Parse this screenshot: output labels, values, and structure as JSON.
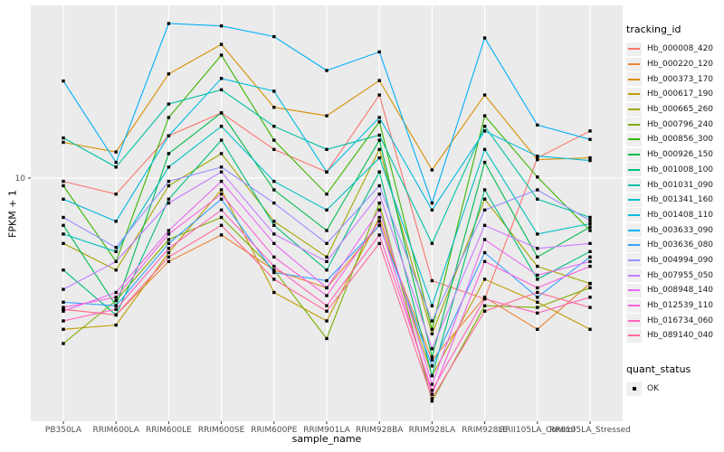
{
  "y_axis": {
    "title": "FPKM + 1"
  },
  "x_axis": {
    "title": "sample_name"
  },
  "legend": {
    "tracking_title": "tracking_id",
    "quant_title": "quant_status",
    "quant_items": [
      {
        "label": "OK",
        "shape": "filled-square"
      }
    ]
  },
  "chart_data": {
    "type": "line",
    "title": "",
    "xlabel": "sample_name",
    "ylabel": "FPKM + 1",
    "y_scale": "log10",
    "y_ticks": [
      "10"
    ],
    "grid": "on",
    "legend_position": "right",
    "panel_bg": "#EBEBEB",
    "grid_color": "#FFFFFF",
    "point_color": "#000000",
    "point_shape": "filled-square",
    "tick_text_color": "#4D4D4D",
    "categories": [
      "PB350LA",
      "RRIM600LA",
      "RRIM600LE",
      "RRIM600SE",
      "RRIM600PE",
      "RRIM901LA",
      "RRIM928BA",
      "RRIM928LA",
      "RRIM928LE",
      "RRII105LA_Control",
      "RRII105LA_Stressed"
    ],
    "series": [
      {
        "name": "Hb_000008_420",
        "color": "#F8766D",
        "values": [
          9.7,
          8.6,
          14.9,
          18.5,
          13.1,
          10.6,
          21.9,
          3.8,
          3.2,
          12.1,
          15.6
        ]
      },
      {
        "name": "Hb_000220_120",
        "color": "#EA8331",
        "values": [
          2.9,
          2.75,
          4.55,
          5.85,
          4.2,
          3.55,
          6.4,
          1.8,
          3.25,
          2.4,
          3.7
        ]
      },
      {
        "name": "Hb_000373_170",
        "color": "#D89000",
        "values": [
          14.0,
          12.8,
          26.7,
          35.3,
          19.5,
          18.0,
          25.1,
          10.8,
          21.9,
          11.9,
          12.1
        ]
      },
      {
        "name": "Hb_000617_190",
        "color": "#C09B00",
        "values": [
          2.4,
          2.5,
          4.95,
          8.95,
          3.4,
          2.6,
          6.9,
          1.55,
          3.85,
          3.1,
          2.4
        ]
      },
      {
        "name": "Hb_000665_260",
        "color": "#A3A500",
        "values": [
          5.4,
          4.2,
          9.3,
          12.6,
          6.65,
          4.75,
          13.1,
          2.3,
          8.2,
          4.35,
          3.7
        ]
      },
      {
        "name": "Hb_000796_240",
        "color": "#7CAE00",
        "values": [
          2.1,
          3.15,
          5.6,
          6.9,
          4.2,
          2.2,
          7.9,
          1.22,
          3.0,
          2.95,
          3.55
        ]
      },
      {
        "name": "Hb_000856_300",
        "color": "#39B600",
        "values": [
          9.3,
          4.55,
          17.7,
          31.9,
          14.3,
          8.6,
          17.0,
          2.4,
          18.0,
          10.1,
          6.1
        ]
      },
      {
        "name": "Hb_000926_150",
        "color": "#00BB4E",
        "values": [
          6.4,
          3.0,
          12.6,
          18.5,
          8.95,
          6.1,
          14.3,
          1.85,
          11.6,
          4.75,
          6.3
        ]
      },
      {
        "name": "Hb_001008_100",
        "color": "#00BF7D",
        "values": [
          4.2,
          2.75,
          8.2,
          14.3,
          6.4,
          4.2,
          10.6,
          1.55,
          8.95,
          3.85,
          5.0
        ]
      },
      {
        "name": "Hb_001031_090",
        "color": "#00C1A3",
        "values": [
          14.6,
          11.1,
          20.1,
          23.0,
          16.3,
          13.1,
          15.0,
          5.4,
          16.3,
          8.2,
          6.9
        ]
      },
      {
        "name": "Hb_001341_160",
        "color": "#00BFC4",
        "values": [
          5.9,
          5.0,
          11.1,
          16.3,
          9.7,
          7.4,
          12.1,
          3.0,
          13.1,
          5.9,
          6.5
        ]
      },
      {
        "name": "Hb_001408_110",
        "color": "#00BAE0",
        "values": [
          8.2,
          6.65,
          14.9,
          25.6,
          22.7,
          10.6,
          17.7,
          7.4,
          15.6,
          12.3,
          11.8
        ]
      },
      {
        "name": "Hb_003633_090",
        "color": "#00B0F6",
        "values": [
          25.0,
          11.6,
          43.0,
          42.0,
          38.0,
          27.6,
          32.9,
          7.9,
          37.5,
          16.5,
          14.4
        ]
      },
      {
        "name": "Hb_003636_080",
        "color": "#35A2FF",
        "values": [
          3.1,
          3.0,
          5.4,
          8.2,
          4.1,
          3.8,
          6.4,
          1.7,
          4.95,
          3.25,
          4.75
        ]
      },
      {
        "name": "Hb_004994_090",
        "color": "#9590FF",
        "values": [
          6.9,
          5.2,
          9.7,
          11.1,
          7.9,
          5.4,
          9.3,
          2.6,
          7.4,
          8.95,
          6.7
        ]
      },
      {
        "name": "Hb_007955_050",
        "color": "#C77CFF",
        "values": [
          3.5,
          4.55,
          7.9,
          10.6,
          5.9,
          4.55,
          8.6,
          2.0,
          6.4,
          5.15,
          5.4
        ]
      },
      {
        "name": "Hb_008948_140",
        "color": "#E76BF3",
        "values": [
          2.85,
          3.4,
          6.1,
          9.7,
          5.4,
          3.55,
          7.4,
          1.43,
          5.6,
          4.0,
          4.55
        ]
      },
      {
        "name": "Hb_012539_110",
        "color": "#FA62DB",
        "values": [
          2.95,
          3.25,
          5.9,
          8.6,
          4.75,
          3.3,
          6.65,
          1.3,
          4.55,
          3.55,
          4.35
        ]
      },
      {
        "name": "Hb_016734_060",
        "color": "#FF62BC",
        "values": [
          2.6,
          2.9,
          5.15,
          7.4,
          4.35,
          3.0,
          5.85,
          1.35,
          3.2,
          2.8,
          3.25
        ]
      },
      {
        "name": "Hb_089140_040",
        "color": "#FF6A98",
        "values": [
          2.9,
          2.75,
          4.75,
          6.4,
          3.85,
          2.85,
          5.4,
          1.25,
          2.85,
          3.4,
          2.95
        ]
      }
    ]
  }
}
